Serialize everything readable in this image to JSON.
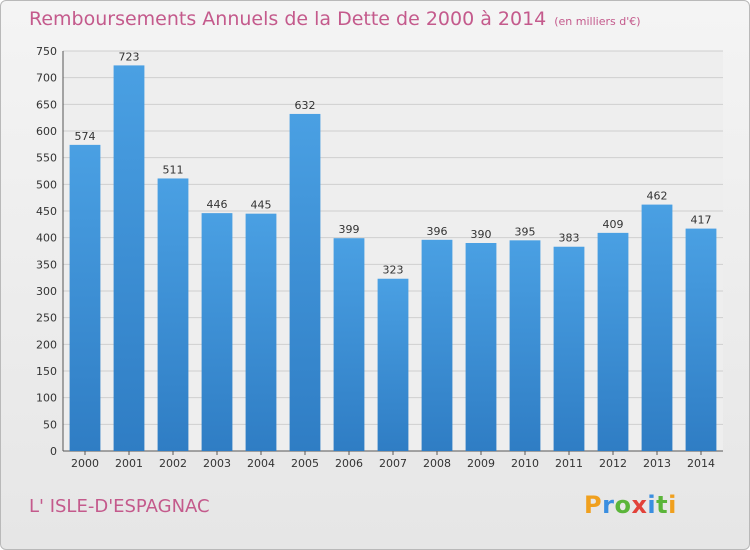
{
  "title": "Remboursements Annuels de la Dette de 2000 à 2014",
  "unit_note": "(en milliers d'€)",
  "commune": "L' ISLE-D'ESPAGNAC",
  "brand": {
    "letters": [
      "P",
      "r",
      "o",
      "x",
      "i",
      "t",
      "i"
    ],
    "colors": [
      "#f0a01e",
      "#3a8ee0",
      "#5bb53a",
      "#e2423a",
      "#3a8ee0",
      "#5bb53a",
      "#f0a01e"
    ]
  },
  "colors": {
    "bar": "#4aa0e3",
    "bar_dark": "#2f7dc4",
    "grid": "#cfcfcf"
  },
  "chart_data": {
    "type": "bar",
    "title": "Remboursements Annuels de la Dette de 2000 à 2014",
    "xlabel": "",
    "ylabel": "",
    "ylim": [
      0,
      750
    ],
    "yticks": [
      0,
      50,
      100,
      150,
      200,
      250,
      300,
      350,
      400,
      450,
      500,
      550,
      600,
      650,
      700,
      750
    ],
    "grid": true,
    "categories": [
      "2000",
      "2001",
      "2002",
      "2003",
      "2004",
      "2005",
      "2006",
      "2007",
      "2008",
      "2009",
      "2010",
      "2011",
      "2012",
      "2013",
      "2014"
    ],
    "values": [
      574,
      723,
      511,
      446,
      445,
      632,
      399,
      323,
      396,
      390,
      395,
      383,
      409,
      462,
      417
    ]
  }
}
